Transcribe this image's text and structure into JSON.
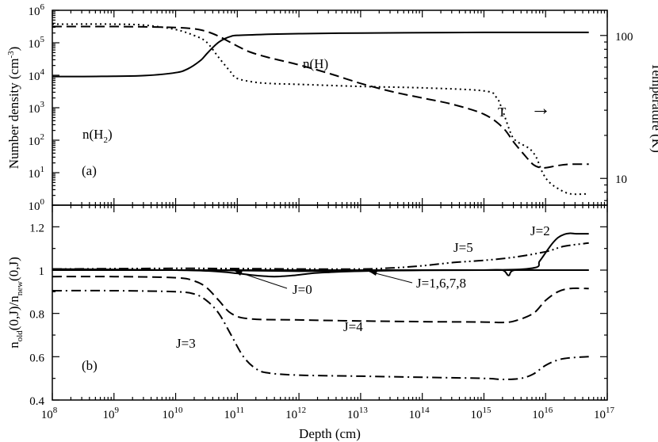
{
  "chart_data": [
    {
      "type": "line",
      "panel_label": "(a)",
      "xscale": "log",
      "xlim": [
        100000000.0,
        1e+17
      ],
      "ylabel": "Number density (cm^-3)",
      "ylabel_parts": {
        "main": "Number density (cm",
        "sup": "-3",
        "tail": ")"
      },
      "ylim": [
        1,
        1000000.0
      ],
      "y2label": "Temperature (K)",
      "y2lim": [
        6.5,
        150
      ],
      "y_ticks": [
        {
          "exp": 0,
          "base": "10",
          "sup": "0"
        },
        {
          "exp": 1,
          "base": "10",
          "sup": "1"
        },
        {
          "exp": 2,
          "base": "10",
          "sup": "2"
        },
        {
          "exp": 3,
          "base": "10",
          "sup": "3"
        },
        {
          "exp": 4,
          "base": "10",
          "sup": "4"
        },
        {
          "exp": 5,
          "base": "10",
          "sup": "5"
        },
        {
          "exp": 6,
          "base": "10",
          "sup": "6"
        }
      ],
      "y2_ticks": [
        {
          "value": 10,
          "label": "10"
        },
        {
          "value": 100,
          "label": "100"
        }
      ],
      "series": [
        {
          "name": "n(H2)",
          "label_main": "n(H",
          "label_sub": "2",
          "label_tail": ")",
          "axis": "left",
          "style": "solid",
          "x": [
            8,
            8.5,
            9,
            9.5,
            10,
            10.2,
            10.4,
            10.5,
            10.6,
            10.7,
            10.8,
            10.9,
            11,
            11.5,
            12,
            13,
            14,
            15,
            16,
            16.7
          ],
          "y": [
            3.96,
            3.96,
            3.97,
            3.99,
            4.08,
            4.2,
            4.45,
            4.65,
            4.85,
            5.02,
            5.13,
            5.2,
            5.23,
            5.26,
            5.28,
            5.3,
            5.31,
            5.32,
            5.32,
            5.32
          ]
        },
        {
          "name": "n(H)",
          "label": "n(H)",
          "axis": "left",
          "style": "dashed",
          "x": [
            8,
            9,
            9.5,
            10,
            10.3,
            10.5,
            10.7,
            10.9,
            11,
            11.2,
            11.5,
            12,
            12.5,
            13,
            13.5,
            14,
            14.5,
            15,
            15.3,
            15.5,
            15.7,
            15.8,
            15.9,
            16,
            16.2,
            16.4,
            16.7
          ],
          "y": [
            5.5,
            5.5,
            5.49,
            5.47,
            5.43,
            5.35,
            5.2,
            5.0,
            4.9,
            4.72,
            4.55,
            4.32,
            4.05,
            3.75,
            3.5,
            3.3,
            3.1,
            2.8,
            2.4,
            1.9,
            1.45,
            1.25,
            1.16,
            1.15,
            1.22,
            1.26,
            1.26
          ]
        },
        {
          "name": "T",
          "label": "T",
          "arrow_glyph": "→",
          "axis": "right",
          "style": "dotted",
          "x": [
            8,
            9,
            9.5,
            10,
            10.3,
            10.5,
            10.7,
            10.9,
            11,
            11.3,
            11.6,
            12,
            13,
            14,
            15,
            15.2,
            15.3,
            15.45,
            15.55,
            15.65,
            15.75,
            15.85,
            15.95,
            16.05,
            16.2,
            16.4,
            16.7
          ],
          "y": [
            120,
            120,
            118,
            110,
            100,
            90,
            70,
            55,
            50,
            47,
            46,
            45.5,
            44,
            43,
            41,
            37,
            30,
            20,
            18,
            17,
            16,
            14,
            11,
            9.5,
            8.5,
            7.8,
            7.8
          ]
        }
      ]
    },
    {
      "type": "line",
      "panel_label": "(b)",
      "xlabel": "Depth (cm)",
      "xscale": "log",
      "xlim": [
        100000000.0,
        1e+17
      ],
      "x_ticks": [
        {
          "exp": 8,
          "base": "10",
          "sup": "8"
        },
        {
          "exp": 9,
          "base": "10",
          "sup": "9"
        },
        {
          "exp": 10,
          "base": "10",
          "sup": "10"
        },
        {
          "exp": 11,
          "base": "10",
          "sup": "11"
        },
        {
          "exp": 12,
          "base": "10",
          "sup": "12"
        },
        {
          "exp": 13,
          "base": "10",
          "sup": "13"
        },
        {
          "exp": 14,
          "base": "10",
          "sup": "14"
        },
        {
          "exp": 15,
          "base": "10",
          "sup": "15"
        },
        {
          "exp": 16,
          "base": "10",
          "sup": "16"
        },
        {
          "exp": 17,
          "base": "10",
          "sup": "17"
        }
      ],
      "ylabel_parts": {
        "n1": "n",
        "s1": "old",
        "m1": "(0,J)/n",
        "s2": "new",
        "m2": "(0,J)"
      },
      "ylim": [
        0.4,
        1.3
      ],
      "y_ticks": [
        {
          "value": 0.4,
          "label": "0.4"
        },
        {
          "value": 0.6,
          "label": "0.6"
        },
        {
          "value": 0.8,
          "label": "0.8"
        },
        {
          "value": 1.0,
          "label": "1"
        },
        {
          "value": 1.2,
          "label": "1.2"
        }
      ],
      "series": [
        {
          "name": "J=0",
          "label": "J=0",
          "style": "solid",
          "x": [
            8,
            10,
            10.6,
            11,
            11.3,
            11.6,
            11.9,
            12.2,
            12.5,
            13,
            14,
            15,
            15.3,
            15.4,
            15.5,
            16,
            16.7
          ],
          "y": [
            1.005,
            1.0,
            0.995,
            0.985,
            0.975,
            0.97,
            0.975,
            0.985,
            0.99,
            0.995,
            1.0,
            1.0,
            1.0,
            0.975,
            1.0,
            1.0,
            1.0
          ]
        },
        {
          "name": "J=1,6,7,8",
          "label": "J=1,6,7,8",
          "style": "solid",
          "x": [
            8,
            10,
            11,
            12,
            13,
            14,
            15,
            16,
            16.7
          ],
          "y": [
            1.0,
            1.0,
            0.998,
            0.995,
            0.997,
            0.999,
            1.0,
            1.0,
            1.0
          ]
        },
        {
          "name": "J=2",
          "label": "J=2",
          "style": "solid",
          "x": [
            8,
            12,
            15,
            15.8,
            15.9,
            16.0,
            16.1,
            16.2,
            16.3,
            16.4,
            16.5,
            16.7
          ],
          "y": [
            1.0,
            1.0,
            1.0,
            1.01,
            1.04,
            1.08,
            1.12,
            1.15,
            1.165,
            1.17,
            1.168,
            1.168
          ]
        },
        {
          "name": "J=3",
          "label": "J=3",
          "style": "dash-dot",
          "x": [
            8,
            9,
            10,
            10.3,
            10.5,
            10.7,
            10.9,
            11.1,
            11.3,
            11.5,
            12,
            13,
            14,
            15,
            15.3,
            15.6,
            15.8,
            16,
            16.2,
            16.4,
            16.7
          ],
          "y": [
            0.905,
            0.905,
            0.9,
            0.89,
            0.86,
            0.8,
            0.7,
            0.6,
            0.545,
            0.525,
            0.515,
            0.51,
            0.505,
            0.5,
            0.495,
            0.5,
            0.52,
            0.56,
            0.585,
            0.595,
            0.6
          ]
        },
        {
          "name": "J=4",
          "label": "J=4",
          "style": "dashed",
          "x": [
            8,
            9,
            10,
            10.3,
            10.5,
            10.7,
            10.9,
            11.2,
            12,
            13,
            14,
            15,
            15.3,
            15.5,
            15.8,
            16,
            16.2,
            16.4,
            16.7
          ],
          "y": [
            0.97,
            0.97,
            0.965,
            0.95,
            0.92,
            0.86,
            0.8,
            0.775,
            0.77,
            0.765,
            0.762,
            0.76,
            0.758,
            0.765,
            0.8,
            0.86,
            0.9,
            0.915,
            0.915
          ]
        },
        {
          "name": "J=5",
          "label": "J=5",
          "style": "dash-dot-dot",
          "x": [
            8,
            10,
            11,
            12,
            13,
            13.5,
            14,
            14.5,
            15,
            15.5,
            16,
            16.3,
            16.7
          ],
          "y": [
            1.005,
            1.008,
            1.007,
            1.005,
            1.005,
            1.01,
            1.02,
            1.035,
            1.045,
            1.06,
            1.085,
            1.11,
            1.125
          ]
        }
      ]
    }
  ]
}
